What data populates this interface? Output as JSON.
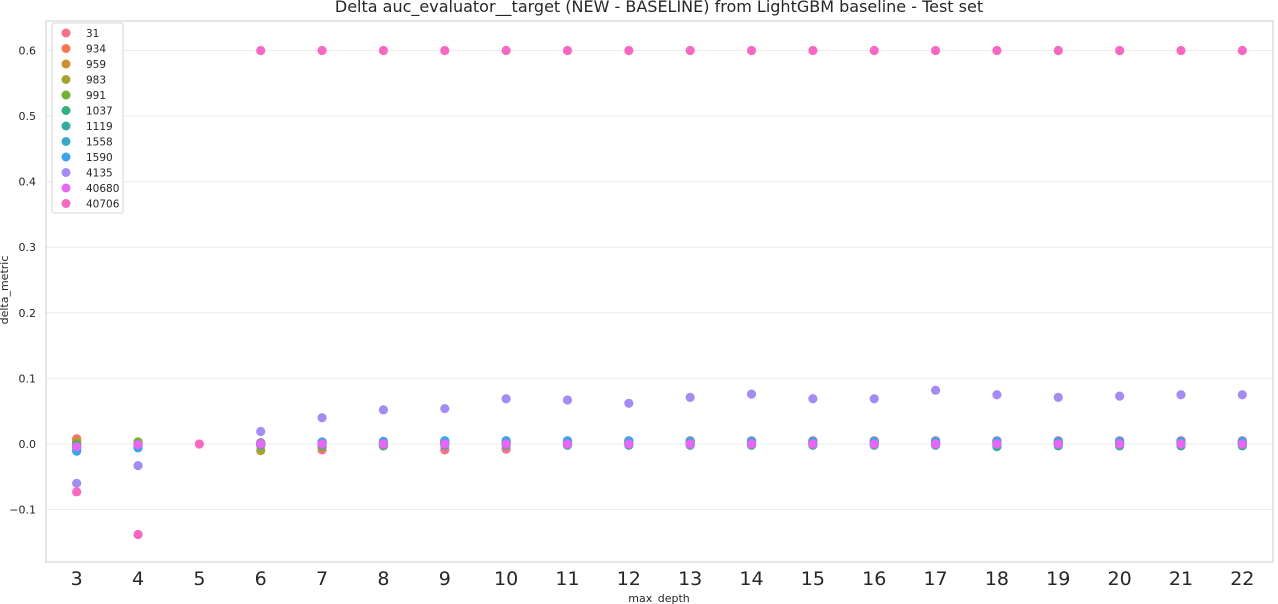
{
  "chart_data": {
    "type": "scatter",
    "title": "Delta auc_evaluator__target (NEW - BASELINE) from LightGBM baseline - Test set",
    "xlabel": "max_depth",
    "ylabel": "delta_metric",
    "categories": [
      "3",
      "4",
      "5",
      "6",
      "7",
      "8",
      "9",
      "10",
      "11",
      "12",
      "13",
      "14",
      "15",
      "16",
      "17",
      "18",
      "19",
      "20",
      "21",
      "22"
    ],
    "y_ticks": [
      "−0.1",
      "0.0",
      "0.1",
      "0.2",
      "0.3",
      "0.4",
      "0.5",
      "0.6"
    ],
    "y_tick_values": [
      -0.1,
      0.0,
      0.1,
      0.2,
      0.3,
      0.4,
      0.5,
      0.6
    ],
    "ylim": [
      -0.18,
      0.645
    ],
    "grid": "horizontal",
    "legend_position": "upper-left",
    "series": [
      {
        "name": "31",
        "color": "#f77189",
        "values": [
          0.008,
          0.0,
          null,
          0.0,
          -0.009,
          -0.002,
          -0.009,
          -0.008,
          0.0,
          0.0,
          0.0,
          0.0,
          0.0,
          0.0,
          0.0,
          0.0,
          0.0,
          0.0,
          0.0,
          0.0
        ]
      },
      {
        "name": "934",
        "color": "#f7754f",
        "values": [
          0.006,
          0.001,
          null,
          0.002,
          0.003,
          0.003,
          0.004,
          0.004,
          0.004,
          0.004,
          0.005,
          0.005,
          0.005,
          0.005,
          0.005,
          0.005,
          0.005,
          0.005,
          0.005,
          0.005
        ]
      },
      {
        "name": "959",
        "color": "#ce8f31",
        "values": [
          0.003,
          0.002,
          null,
          -0.002,
          -0.004,
          -0.003,
          0.002,
          0.002,
          0.003,
          0.003,
          0.003,
          0.003,
          0.003,
          0.003,
          0.003,
          0.003,
          0.003,
          0.003,
          0.003,
          0.003
        ]
      },
      {
        "name": "983",
        "color": "#a8a031",
        "values": [
          0.001,
          0.003,
          null,
          -0.01,
          -0.005,
          -0.003,
          0.001,
          0.0,
          0.001,
          0.001,
          0.001,
          0.001,
          0.001,
          0.001,
          0.001,
          0.001,
          0.001,
          0.001,
          0.001,
          0.001
        ]
      },
      {
        "name": "991",
        "color": "#73b131",
        "values": [
          0.0,
          0.003,
          null,
          0.001,
          0.001,
          0.001,
          0.002,
          0.001,
          0.002,
          0.002,
          0.002,
          0.002,
          0.002,
          0.002,
          0.002,
          0.002,
          0.002,
          0.002,
          0.002,
          0.002
        ]
      },
      {
        "name": "1037",
        "color": "#33b07a",
        "values": [
          -0.002,
          -0.002,
          null,
          0.0,
          0.0,
          0.0,
          0.0,
          0.0,
          0.0,
          0.0,
          0.0,
          0.0,
          0.0,
          0.0,
          0.0,
          0.0,
          0.0,
          0.0,
          0.0,
          0.0
        ]
      },
      {
        "name": "1119",
        "color": "#35ad9c",
        "values": [
          -0.005,
          -0.003,
          null,
          -0.002,
          -0.002,
          -0.002,
          -0.002,
          -0.002,
          -0.002,
          -0.002,
          -0.002,
          -0.002,
          -0.002,
          -0.002,
          -0.002,
          -0.004,
          -0.003,
          -0.003,
          -0.003,
          -0.003
        ]
      },
      {
        "name": "1558",
        "color": "#38a9c5",
        "values": [
          -0.008,
          -0.005,
          null,
          0.001,
          0.002,
          0.002,
          0.003,
          0.003,
          0.004,
          0.004,
          0.004,
          0.004,
          0.003,
          0.003,
          0.003,
          0.003,
          0.003,
          0.003,
          0.003,
          0.003
        ]
      },
      {
        "name": "1590",
        "color": "#3ba3ec",
        "values": [
          -0.011,
          -0.006,
          null,
          0.001,
          0.003,
          0.004,
          0.005,
          0.005,
          0.005,
          0.005,
          0.004,
          0.004,
          0.004,
          0.004,
          0.004,
          0.004,
          0.004,
          0.004,
          0.004,
          0.004
        ]
      },
      {
        "name": "4135",
        "color": "#a48cf4",
        "values": [
          -0.06,
          -0.033,
          null,
          0.019,
          0.04,
          0.052,
          0.054,
          0.069,
          0.067,
          0.062,
          0.071,
          0.076,
          0.069,
          0.069,
          0.082,
          0.075,
          0.071,
          0.073,
          0.075,
          0.075
        ]
      },
      {
        "name": "40680",
        "color": "#e866f4",
        "values": [
          -0.004,
          -0.001,
          null,
          0.0,
          0.0,
          0.0,
          0.0,
          0.0,
          0.0,
          0.0,
          0.0,
          0.0,
          0.0,
          0.0,
          0.0,
          0.0,
          0.0,
          0.0,
          0.0,
          0.0
        ]
      },
      {
        "name": "40706",
        "color": "#f668c2",
        "values": [
          -0.073,
          -0.138,
          0.0,
          0.6,
          0.6,
          0.6,
          0.6,
          0.6,
          0.6,
          0.6,
          0.6,
          0.6,
          0.6,
          0.6,
          0.6,
          0.6,
          0.6,
          0.6,
          0.6,
          0.6
        ]
      }
    ]
  }
}
